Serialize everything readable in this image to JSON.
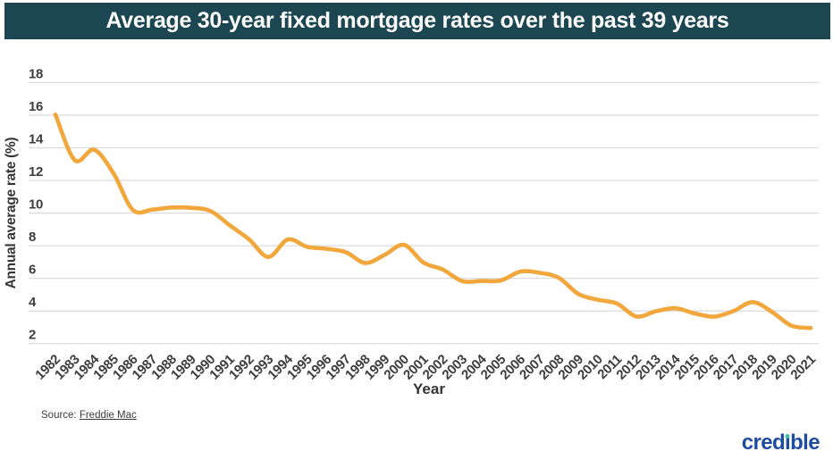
{
  "header": {
    "title": "Average 30-year fixed mortgage rates over the past 39 years"
  },
  "chart_data": {
    "type": "line",
    "title": "Average 30-year fixed mortgage rates over the past 39 years",
    "xlabel": "Year",
    "ylabel": "Annual average rate (%)",
    "x": [
      1982,
      1983,
      1984,
      1985,
      1986,
      1987,
      1988,
      1989,
      1990,
      1991,
      1992,
      1993,
      1994,
      1995,
      1996,
      1997,
      1998,
      1999,
      2000,
      2001,
      2002,
      2003,
      2004,
      2005,
      2006,
      2007,
      2008,
      2009,
      2010,
      2011,
      2012,
      2013,
      2014,
      2015,
      2016,
      2017,
      2018,
      2019,
      2020,
      2021
    ],
    "series": [
      {
        "name": "Average 30-year fixed mortgage rate",
        "color": "#F1A73C",
        "values": [
          16.04,
          13.24,
          13.88,
          12.43,
          10.19,
          10.21,
          10.34,
          10.32,
          10.13,
          9.25,
          8.39,
          7.31,
          8.38,
          7.93,
          7.81,
          7.6,
          6.94,
          7.44,
          8.05,
          6.97,
          6.54,
          5.83,
          5.84,
          5.87,
          6.41,
          6.34,
          6.03,
          5.04,
          4.69,
          4.45,
          3.66,
          3.98,
          4.17,
          3.85,
          3.65,
          3.99,
          4.54,
          3.94,
          3.1,
          2.96
        ]
      }
    ],
    "ylim": [
      2,
      18
    ],
    "ytick_step": 2,
    "yticks": [
      18,
      16,
      14,
      12,
      10,
      8,
      6,
      4,
      2
    ],
    "grid": true,
    "legend_position": "none"
  },
  "source": {
    "prefix": "Source: ",
    "link_text": "Freddie Mac"
  },
  "logo": {
    "text": "credible",
    "pre": "cred",
    "i_char": "ı",
    "post": "ble"
  },
  "colors": {
    "header_bg": "#1C4651",
    "title_text": "#FFFFFF",
    "line": "#F1A73C",
    "grid": "#DCDCDC",
    "tick_text": "#3E3E3E",
    "source_text": "#3C3C3C",
    "logo_blue": "#1F4CA0",
    "logo_dot": "#3CBEA8"
  }
}
